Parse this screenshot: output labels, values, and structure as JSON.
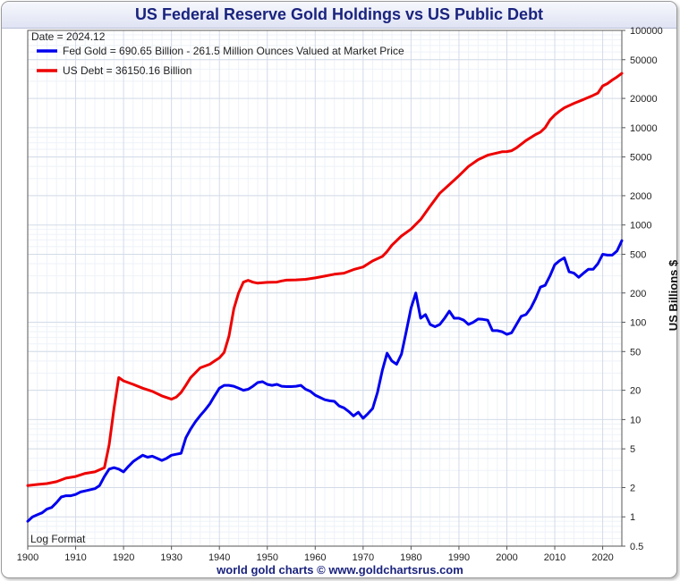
{
  "chart_data": {
    "type": "line",
    "title": "US Federal Reserve Gold Holdings vs US Public Debt",
    "date_label": "Date = 2024.12",
    "scale_note": "Log Format",
    "ylabel": "US Billions $",
    "xlabel": "",
    "y_scale": "log",
    "ylim": [
      0.5,
      100000
    ],
    "xlim": [
      1900,
      2024
    ],
    "grid": true,
    "legend_position": "top-left",
    "x_ticks": [
      1900,
      1910,
      1920,
      1930,
      1940,
      1950,
      1960,
      1970,
      1980,
      1990,
      2000,
      2010,
      2020
    ],
    "y_ticks": [
      0.5,
      1,
      2,
      5,
      10,
      20,
      50,
      100,
      200,
      500,
      1000,
      2000,
      5000,
      10000,
      20000,
      50000,
      100000
    ],
    "series": [
      {
        "name": "Fed Gold = 690.65 Billion - 261.5 Million Ounces Valued at Market Price",
        "color": "#0000ee",
        "points": [
          [
            1900,
            0.9
          ],
          [
            1901,
            1.0
          ],
          [
            1902,
            1.05
          ],
          [
            1903,
            1.1
          ],
          [
            1904,
            1.2
          ],
          [
            1905,
            1.25
          ],
          [
            1906,
            1.4
          ],
          [
            1907,
            1.6
          ],
          [
            1908,
            1.65
          ],
          [
            1909,
            1.65
          ],
          [
            1910,
            1.7
          ],
          [
            1911,
            1.8
          ],
          [
            1912,
            1.85
          ],
          [
            1913,
            1.9
          ],
          [
            1914,
            1.95
          ],
          [
            1915,
            2.1
          ],
          [
            1916,
            2.6
          ],
          [
            1917,
            3.1
          ],
          [
            1918,
            3.2
          ],
          [
            1919,
            3.1
          ],
          [
            1920,
            2.9
          ],
          [
            1921,
            3.3
          ],
          [
            1922,
            3.7
          ],
          [
            1923,
            4.0
          ],
          [
            1924,
            4.3
          ],
          [
            1925,
            4.1
          ],
          [
            1926,
            4.2
          ],
          [
            1927,
            4.0
          ],
          [
            1928,
            3.8
          ],
          [
            1929,
            4.0
          ],
          [
            1930,
            4.3
          ],
          [
            1931,
            4.4
          ],
          [
            1932,
            4.5
          ],
          [
            1933,
            6.5
          ],
          [
            1934,
            8.0
          ],
          [
            1935,
            9.5
          ],
          [
            1936,
            11.0
          ],
          [
            1937,
            12.5
          ],
          [
            1938,
            14.5
          ],
          [
            1939,
            17.5
          ],
          [
            1940,
            21.0
          ],
          [
            1941,
            22.5
          ],
          [
            1942,
            22.5
          ],
          [
            1943,
            22.0
          ],
          [
            1944,
            21.0
          ],
          [
            1945,
            20.0
          ],
          [
            1946,
            20.5
          ],
          [
            1947,
            22.0
          ],
          [
            1948,
            24.0
          ],
          [
            1949,
            24.5
          ],
          [
            1950,
            23.0
          ],
          [
            1951,
            22.5
          ],
          [
            1952,
            23.0
          ],
          [
            1953,
            22.0
          ],
          [
            1954,
            21.8
          ],
          [
            1955,
            21.8
          ],
          [
            1956,
            22.0
          ],
          [
            1957,
            22.5
          ],
          [
            1958,
            20.5
          ],
          [
            1959,
            19.5
          ],
          [
            1960,
            17.8
          ],
          [
            1961,
            16.9
          ],
          [
            1962,
            16.0
          ],
          [
            1963,
            15.6
          ],
          [
            1964,
            15.4
          ],
          [
            1965,
            13.8
          ],
          [
            1966,
            13.2
          ],
          [
            1967,
            12.1
          ],
          [
            1968,
            10.9
          ],
          [
            1969,
            11.9
          ],
          [
            1970,
            10.3
          ],
          [
            1971,
            11.5
          ],
          [
            1972,
            13.0
          ],
          [
            1973,
            19.0
          ],
          [
            1974,
            32.0
          ],
          [
            1975,
            48.0
          ],
          [
            1976,
            40.0
          ],
          [
            1977,
            37.0
          ],
          [
            1978,
            47.0
          ],
          [
            1979,
            80.0
          ],
          [
            1980,
            140.0
          ],
          [
            1981,
            200.0
          ],
          [
            1982,
            110.0
          ],
          [
            1983,
            120.0
          ],
          [
            1984,
            95.0
          ],
          [
            1985,
            90.0
          ],
          [
            1986,
            95.0
          ],
          [
            1987,
            110.0
          ],
          [
            1988,
            130.0
          ],
          [
            1989,
            110.0
          ],
          [
            1990,
            110.0
          ],
          [
            1991,
            105.0
          ],
          [
            1992,
            95.0
          ],
          [
            1993,
            100.0
          ],
          [
            1994,
            108.0
          ],
          [
            1995,
            107.0
          ],
          [
            1996,
            105.0
          ],
          [
            1997,
            82.0
          ],
          [
            1998,
            82.0
          ],
          [
            1999,
            80.0
          ],
          [
            2000,
            75.0
          ],
          [
            2001,
            78.0
          ],
          [
            2002,
            95.0
          ],
          [
            2003,
            115.0
          ],
          [
            2004,
            120.0
          ],
          [
            2005,
            140.0
          ],
          [
            2006,
            175.0
          ],
          [
            2007,
            230.0
          ],
          [
            2008,
            240.0
          ],
          [
            2009,
            300.0
          ],
          [
            2010,
            390.0
          ],
          [
            2011,
            430.0
          ],
          [
            2012,
            460.0
          ],
          [
            2013,
            330.0
          ],
          [
            2014,
            320.0
          ],
          [
            2015,
            290.0
          ],
          [
            2016,
            320.0
          ],
          [
            2017,
            350.0
          ],
          [
            2018,
            350.0
          ],
          [
            2019,
            400.0
          ],
          [
            2020,
            500.0
          ],
          [
            2021,
            490.0
          ],
          [
            2022,
            490.0
          ],
          [
            2023,
            540.0
          ],
          [
            2024,
            690.65
          ]
        ]
      },
      {
        "name": "US Debt = 36150.16 Billion",
        "color": "#ee0000",
        "points": [
          [
            1900,
            2.1
          ],
          [
            1902,
            2.15
          ],
          [
            1904,
            2.2
          ],
          [
            1906,
            2.3
          ],
          [
            1908,
            2.5
          ],
          [
            1910,
            2.6
          ],
          [
            1912,
            2.8
          ],
          [
            1914,
            2.9
          ],
          [
            1916,
            3.2
          ],
          [
            1917,
            5.5
          ],
          [
            1918,
            13.0
          ],
          [
            1919,
            27.0
          ],
          [
            1920,
            25.0
          ],
          [
            1922,
            23.0
          ],
          [
            1924,
            21.0
          ],
          [
            1926,
            19.5
          ],
          [
            1928,
            17.5
          ],
          [
            1930,
            16.2
          ],
          [
            1931,
            17.0
          ],
          [
            1932,
            19.0
          ],
          [
            1933,
            22.5
          ],
          [
            1934,
            27.0
          ],
          [
            1936,
            34.0
          ],
          [
            1938,
            37.0
          ],
          [
            1939,
            40.0
          ],
          [
            1940,
            43.0
          ],
          [
            1941,
            49.0
          ],
          [
            1942,
            72.0
          ],
          [
            1943,
            137.0
          ],
          [
            1944,
            200.0
          ],
          [
            1945,
            258.0
          ],
          [
            1946,
            270.0
          ],
          [
            1947,
            258.0
          ],
          [
            1948,
            252.0
          ],
          [
            1950,
            257.0
          ],
          [
            1952,
            259.0
          ],
          [
            1953,
            266.0
          ],
          [
            1954,
            271.0
          ],
          [
            1956,
            273.0
          ],
          [
            1958,
            276.0
          ],
          [
            1960,
            286.0
          ],
          [
            1962,
            298.0
          ],
          [
            1964,
            312.0
          ],
          [
            1966,
            320.0
          ],
          [
            1968,
            348.0
          ],
          [
            1970,
            370.0
          ],
          [
            1972,
            427.0
          ],
          [
            1974,
            475.0
          ],
          [
            1975,
            533.0
          ],
          [
            1976,
            620.0
          ],
          [
            1978,
            771.0
          ],
          [
            1980,
            908.0
          ],
          [
            1982,
            1137.0
          ],
          [
            1984,
            1564.0
          ],
          [
            1986,
            2120.0
          ],
          [
            1988,
            2600.0
          ],
          [
            1990,
            3200.0
          ],
          [
            1992,
            4000.0
          ],
          [
            1994,
            4690.0
          ],
          [
            1996,
            5220.0
          ],
          [
            1998,
            5500.0
          ],
          [
            1999,
            5650.0
          ],
          [
            2000,
            5680.0
          ],
          [
            2001,
            5800.0
          ],
          [
            2002,
            6200.0
          ],
          [
            2004,
            7380.0
          ],
          [
            2006,
            8500.0
          ],
          [
            2007,
            9000.0
          ],
          [
            2008,
            10000.0
          ],
          [
            2009,
            12000.0
          ],
          [
            2010,
            13500.0
          ],
          [
            2011,
            14800.0
          ],
          [
            2012,
            16000.0
          ],
          [
            2014,
            17800.0
          ],
          [
            2016,
            19500.0
          ],
          [
            2018,
            21500.0
          ],
          [
            2019,
            22700.0
          ],
          [
            2020,
            26900.0
          ],
          [
            2021,
            28400.0
          ],
          [
            2022,
            30900.0
          ],
          [
            2023,
            33200.0
          ],
          [
            2024,
            36150.16
          ]
        ]
      }
    ]
  },
  "footer": "world gold charts © www.goldchartsrus.com"
}
